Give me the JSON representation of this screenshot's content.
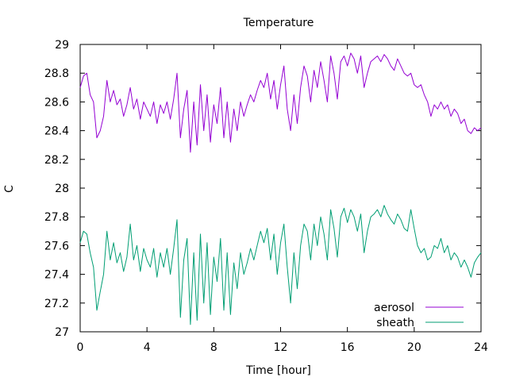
{
  "chart_data": {
    "type": "line",
    "title": "Temperature",
    "xlabel": "Time [hour]",
    "ylabel": "C",
    "xlim": [
      0,
      24
    ],
    "ylim": [
      27,
      29
    ],
    "xticks": [
      0,
      4,
      8,
      12,
      16,
      20,
      24
    ],
    "yticks": [
      27,
      27.2,
      27.4,
      27.6,
      27.8,
      28,
      28.2,
      28.4,
      28.6,
      28.8,
      29
    ],
    "grid": false,
    "legend_position": "bottom-right",
    "series": [
      {
        "name": "aerosol",
        "color": "#9400d3",
        "x": [
          0,
          0.2,
          0.4,
          0.6,
          0.8,
          1.0,
          1.2,
          1.4,
          1.6,
          1.8,
          2.0,
          2.2,
          2.4,
          2.6,
          2.8,
          3.0,
          3.2,
          3.4,
          3.6,
          3.8,
          4.0,
          4.2,
          4.4,
          4.6,
          4.8,
          5.0,
          5.2,
          5.4,
          5.6,
          5.8,
          6.0,
          6.2,
          6.4,
          6.6,
          6.8,
          7.0,
          7.2,
          7.4,
          7.6,
          7.8,
          8.0,
          8.2,
          8.4,
          8.6,
          8.8,
          9.0,
          9.2,
          9.4,
          9.6,
          9.8,
          10.0,
          10.2,
          10.4,
          10.6,
          10.8,
          11.0,
          11.2,
          11.4,
          11.6,
          11.8,
          12.0,
          12.2,
          12.4,
          12.6,
          12.8,
          13.0,
          13.2,
          13.4,
          13.6,
          13.8,
          14.0,
          14.2,
          14.4,
          14.6,
          14.8,
          15.0,
          15.2,
          15.4,
          15.6,
          15.8,
          16.0,
          16.2,
          16.4,
          16.6,
          16.8,
          17.0,
          17.2,
          17.4,
          17.6,
          17.8,
          18.0,
          18.2,
          18.4,
          18.6,
          18.8,
          19.0,
          19.2,
          19.4,
          19.6,
          19.8,
          20.0,
          20.2,
          20.4,
          20.6,
          20.8,
          21.0,
          21.2,
          21.4,
          21.6,
          21.8,
          22.0,
          22.2,
          22.4,
          22.6,
          22.8,
          23.0,
          23.2,
          23.4,
          23.6,
          23.8,
          24.0
        ],
        "y": [
          28.7,
          28.78,
          28.8,
          28.65,
          28.6,
          28.35,
          28.4,
          28.5,
          28.75,
          28.6,
          28.68,
          28.58,
          28.62,
          28.5,
          28.58,
          28.7,
          28.55,
          28.62,
          28.48,
          28.6,
          28.55,
          28.5,
          28.6,
          28.45,
          28.58,
          28.52,
          28.6,
          28.48,
          28.62,
          28.8,
          28.35,
          28.55,
          28.68,
          28.25,
          28.6,
          28.3,
          28.72,
          28.4,
          28.65,
          28.32,
          28.58,
          28.45,
          28.7,
          28.35,
          28.6,
          28.32,
          28.55,
          28.4,
          28.6,
          28.5,
          28.58,
          28.65,
          28.6,
          28.68,
          28.75,
          28.7,
          28.8,
          28.62,
          28.75,
          28.55,
          28.72,
          28.85,
          28.55,
          28.4,
          28.65,
          28.45,
          28.7,
          28.85,
          28.78,
          28.6,
          28.82,
          28.7,
          28.88,
          28.75,
          28.6,
          28.92,
          28.8,
          28.62,
          28.88,
          28.92,
          28.85,
          28.94,
          28.9,
          28.8,
          28.92,
          28.7,
          28.8,
          28.88,
          28.9,
          28.92,
          28.88,
          28.93,
          28.9,
          28.85,
          28.82,
          28.9,
          28.85,
          28.8,
          28.78,
          28.8,
          28.72,
          28.7,
          28.72,
          28.65,
          28.6,
          28.5,
          28.58,
          28.55,
          28.6,
          28.55,
          28.58,
          28.5,
          28.55,
          28.52,
          28.45,
          28.48,
          28.4,
          28.38,
          28.42,
          28.4,
          28.42
        ]
      },
      {
        "name": "sheath",
        "color": "#009e73",
        "x": [
          0,
          0.2,
          0.4,
          0.6,
          0.8,
          1.0,
          1.2,
          1.4,
          1.6,
          1.8,
          2.0,
          2.2,
          2.4,
          2.6,
          2.8,
          3.0,
          3.2,
          3.4,
          3.6,
          3.8,
          4.0,
          4.2,
          4.4,
          4.6,
          4.8,
          5.0,
          5.2,
          5.4,
          5.6,
          5.8,
          6.0,
          6.2,
          6.4,
          6.6,
          6.8,
          7.0,
          7.2,
          7.4,
          7.6,
          7.8,
          8.0,
          8.2,
          8.4,
          8.6,
          8.8,
          9.0,
          9.2,
          9.4,
          9.6,
          9.8,
          10.0,
          10.2,
          10.4,
          10.6,
          10.8,
          11.0,
          11.2,
          11.4,
          11.6,
          11.8,
          12.0,
          12.2,
          12.4,
          12.6,
          12.8,
          13.0,
          13.2,
          13.4,
          13.6,
          13.8,
          14.0,
          14.2,
          14.4,
          14.6,
          14.8,
          15.0,
          15.2,
          15.4,
          15.6,
          15.8,
          16.0,
          16.2,
          16.4,
          16.6,
          16.8,
          17.0,
          17.2,
          17.4,
          17.6,
          17.8,
          18.0,
          18.2,
          18.4,
          18.6,
          18.8,
          19.0,
          19.2,
          19.4,
          19.6,
          19.8,
          20.0,
          20.2,
          20.4,
          20.6,
          20.8,
          21.0,
          21.2,
          21.4,
          21.6,
          21.8,
          22.0,
          22.2,
          22.4,
          22.6,
          22.8,
          23.0,
          23.2,
          23.4,
          23.6,
          23.8,
          24.0
        ],
        "y": [
          27.62,
          27.7,
          27.68,
          27.55,
          27.45,
          27.15,
          27.28,
          27.4,
          27.7,
          27.5,
          27.62,
          27.48,
          27.55,
          27.42,
          27.52,
          27.75,
          27.5,
          27.6,
          27.42,
          27.58,
          27.5,
          27.45,
          27.58,
          27.38,
          27.55,
          27.45,
          27.58,
          27.4,
          27.58,
          27.78,
          27.1,
          27.5,
          27.65,
          27.05,
          27.55,
          27.08,
          27.68,
          27.2,
          27.62,
          27.12,
          27.52,
          27.35,
          27.65,
          27.15,
          27.55,
          27.12,
          27.48,
          27.3,
          27.55,
          27.4,
          27.48,
          27.58,
          27.5,
          27.6,
          27.7,
          27.62,
          27.72,
          27.5,
          27.68,
          27.4,
          27.62,
          27.75,
          27.45,
          27.2,
          27.55,
          27.3,
          27.6,
          27.75,
          27.7,
          27.5,
          27.75,
          27.6,
          27.8,
          27.68,
          27.5,
          27.85,
          27.72,
          27.52,
          27.8,
          27.86,
          27.76,
          27.85,
          27.8,
          27.7,
          27.82,
          27.55,
          27.7,
          27.8,
          27.82,
          27.85,
          27.8,
          27.88,
          27.82,
          27.78,
          27.75,
          27.82,
          27.78,
          27.72,
          27.7,
          27.85,
          27.72,
          27.6,
          27.55,
          27.58,
          27.5,
          27.52,
          27.6,
          27.58,
          27.65,
          27.55,
          27.6,
          27.5,
          27.55,
          27.52,
          27.45,
          27.5,
          27.45,
          27.38,
          27.48,
          27.52,
          27.55
        ]
      }
    ]
  }
}
